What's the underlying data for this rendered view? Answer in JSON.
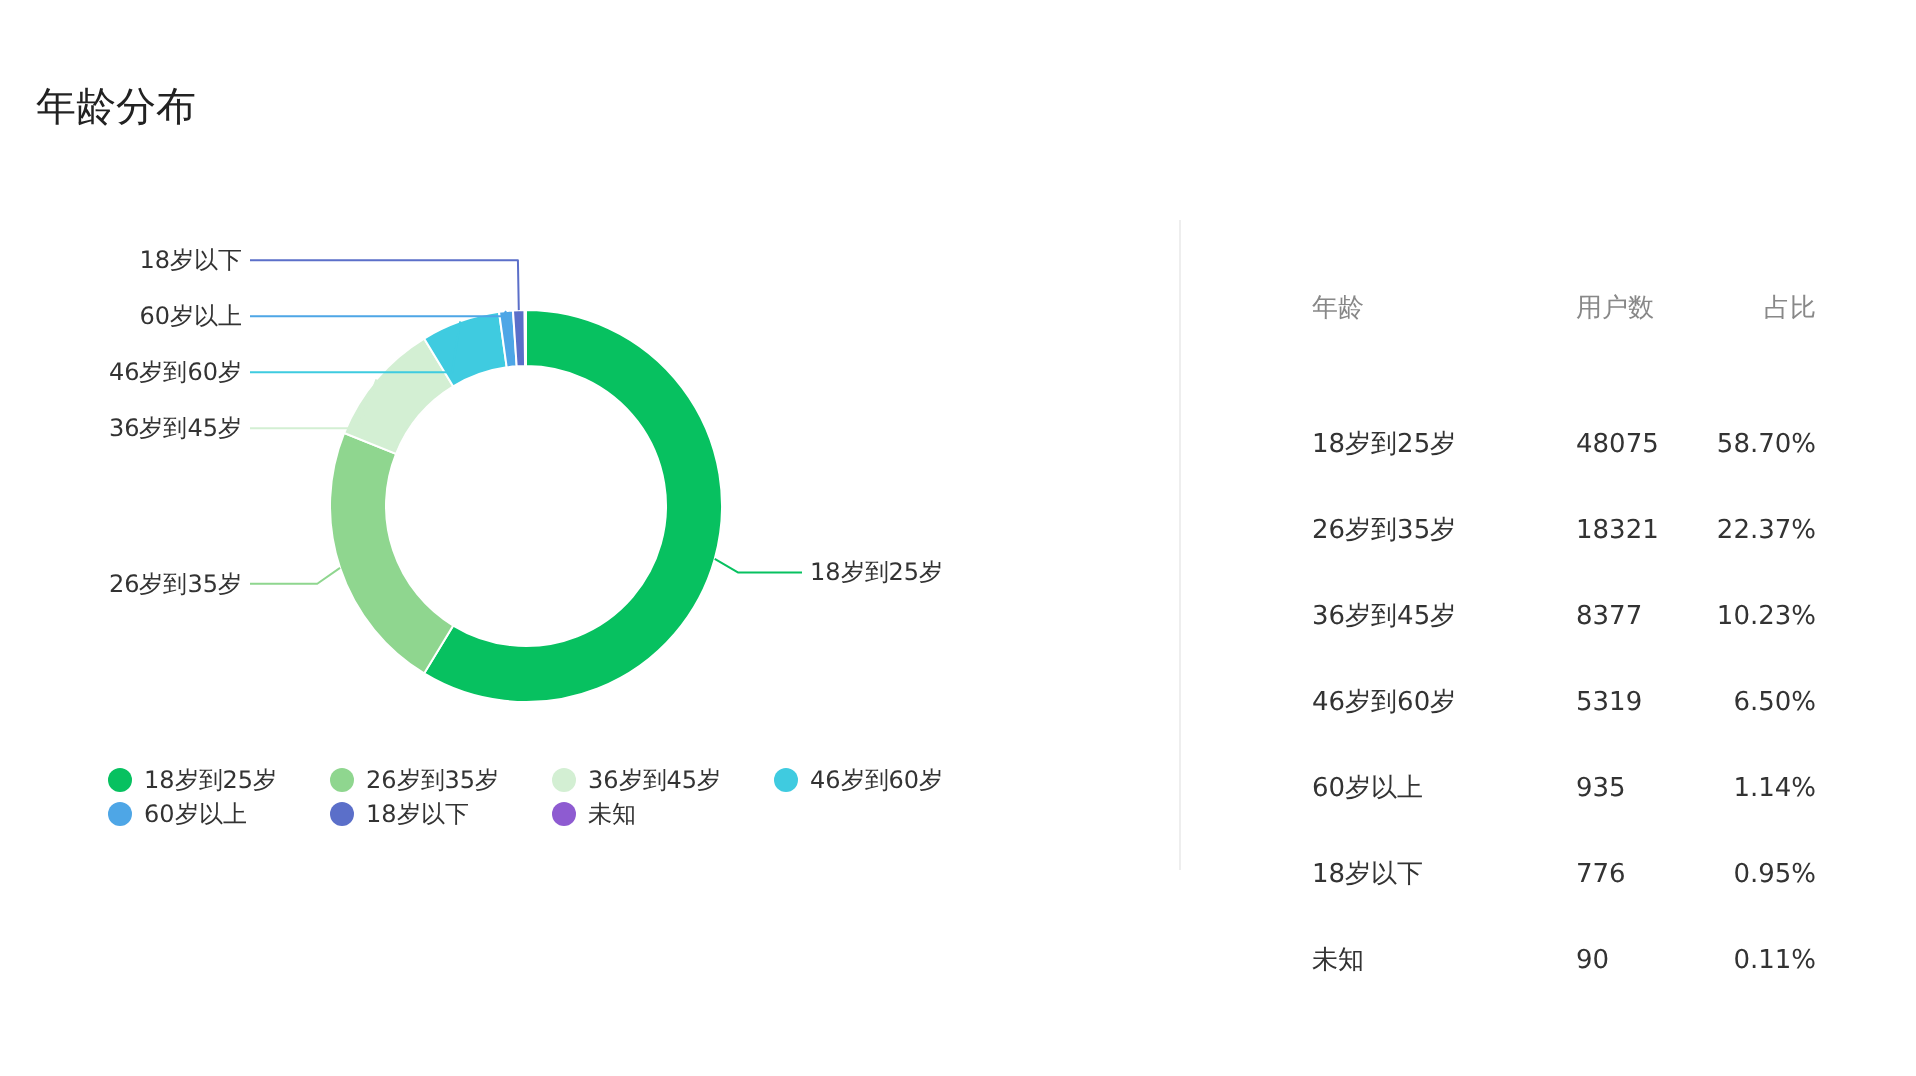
{
  "chart_data": [
    {
      "type": "donut",
      "title": "年龄分布",
      "categories": [
        "18岁到25岁",
        "26岁到35岁",
        "36岁到45岁",
        "46岁到60岁",
        "60岁以上",
        "18岁以下",
        "未知"
      ],
      "values": [
        58.7,
        22.37,
        10.23,
        6.5,
        1.14,
        0.95,
        0.11
      ],
      "colors": [
        "#07c160",
        "#8fd68f",
        "#d3efd3",
        "#3fcbe0",
        "#4ea6e6",
        "#5b6fc9",
        "#8e5bd1"
      ],
      "legend": "bottom"
    },
    {
      "type": "other",
      "annotations": [
        "年龄",
        "用户数",
        "占比",
        "18岁到25岁",
        "48075",
        "58.70%",
        "26岁到35岁",
        "18321",
        "22.37%",
        "36岁到45岁",
        "8377",
        "10.23%",
        "46岁到60岁",
        "5319",
        "6.50%",
        "60岁以上",
        "935",
        "1.14%",
        "18岁以下",
        "776",
        "0.95%",
        "未知",
        "90",
        "0.11%"
      ]
    }
  ]
}
